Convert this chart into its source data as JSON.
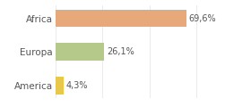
{
  "categories": [
    "America",
    "Europa",
    "Africa"
  ],
  "values": [
    4.3,
    26.1,
    69.6
  ],
  "labels": [
    "4,3%",
    "26,1%",
    "69,6%"
  ],
  "bar_colors": [
    "#e8c84a",
    "#b5c98a",
    "#e8a97a"
  ],
  "background_color": "#ffffff",
  "xlim": [
    0,
    88
  ],
  "label_fontsize": 7,
  "tick_fontsize": 7.5,
  "bar_height": 0.52
}
